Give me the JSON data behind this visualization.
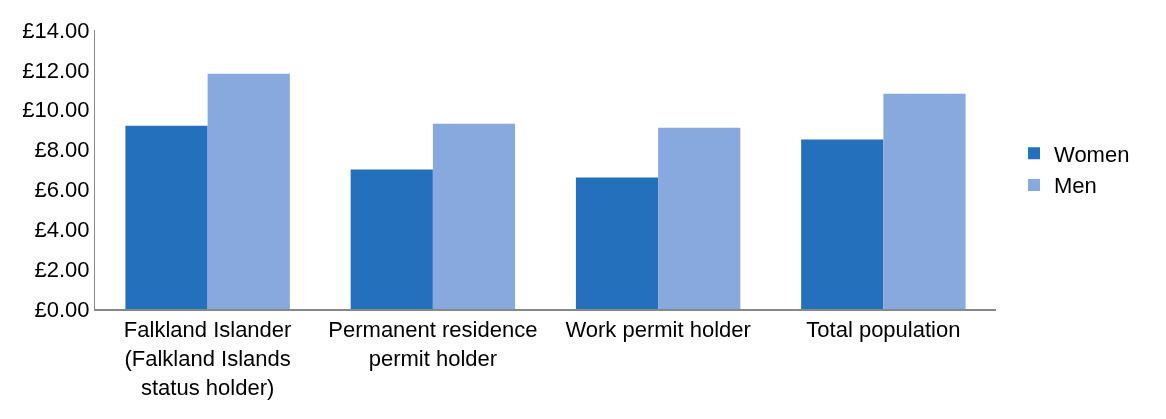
{
  "chart_data": {
    "type": "bar",
    "categories": [
      "Falkland Islander (Falkland Islands status holder)",
      "Permanent residence permit holder",
      "Work permit holder",
      "Total population"
    ],
    "series": [
      {
        "name": "Women",
        "color": "#2570bc",
        "values": [
          9.2,
          7.0,
          6.6,
          8.5
        ]
      },
      {
        "name": "Men",
        "color": "#88a9de",
        "values": [
          11.8,
          9.3,
          9.1,
          10.8
        ]
      }
    ],
    "ylim": [
      0,
      14
    ],
    "yticks": [
      {
        "value": 0,
        "label": "£0.00"
      },
      {
        "value": 2,
        "label": "£2.00"
      },
      {
        "value": 4,
        "label": "£4.00"
      },
      {
        "value": 6,
        "label": "£6.00"
      },
      {
        "value": 8,
        "label": "£8.00"
      },
      {
        "value": 10,
        "label": "£10.00"
      },
      {
        "value": 12,
        "label": "£12.00"
      },
      {
        "value": 14,
        "label": "£14.00"
      }
    ],
    "legend": "right"
  }
}
